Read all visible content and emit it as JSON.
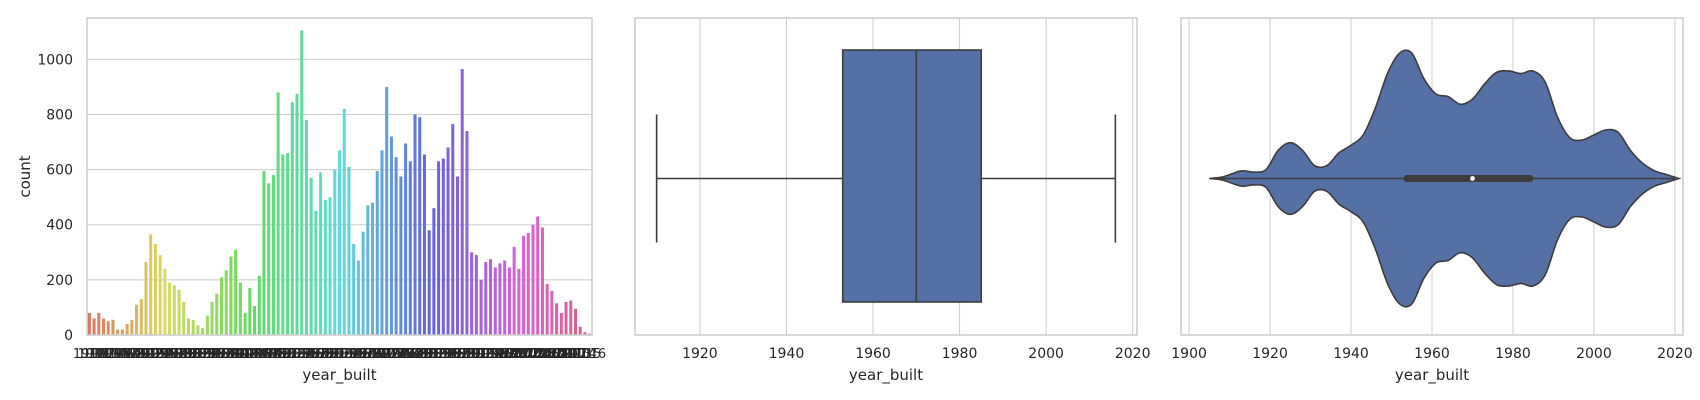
{
  "chart_data": [
    {
      "type": "bar",
      "xlabel": "year_built",
      "ylabel": "count",
      "ylim": [
        0,
        1150
      ],
      "yticks": [
        0,
        200,
        400,
        600,
        800,
        1000
      ],
      "categories": [
        "1910",
        "1911",
        "1912",
        "1913",
        "1914",
        "1915",
        "1916",
        "1917",
        "1918",
        "1919",
        "1920",
        "1921",
        "1922",
        "1923",
        "1924",
        "1925",
        "1926",
        "1927",
        "1928",
        "1929",
        "1930",
        "1931",
        "1932",
        "1933",
        "1934",
        "1935",
        "1936",
        "1937",
        "1938",
        "1939",
        "1940",
        "1941",
        "1942",
        "1943",
        "1944",
        "1945",
        "1946",
        "1947",
        "1948",
        "1949",
        "1950",
        "1951",
        "1952",
        "1953",
        "1954",
        "1955",
        "1956",
        "1957",
        "1958",
        "1959",
        "1960",
        "1961",
        "1962",
        "1963",
        "1964",
        "1965",
        "1966",
        "1967",
        "1968",
        "1969",
        "1970",
        "1971",
        "1972",
        "1973",
        "1974",
        "1975",
        "1976",
        "1977",
        "1978",
        "1979",
        "1980",
        "1981",
        "1982",
        "1983",
        "1984",
        "1985",
        "1986",
        "1987",
        "1988",
        "1989",
        "1990",
        "1991",
        "1992",
        "1993",
        "1994",
        "1995",
        "1996",
        "1997",
        "1998",
        "1999",
        "2000",
        "2001",
        "2002",
        "2003",
        "2004",
        "2005",
        "2006",
        "2007",
        "2008",
        "2009",
        "2010",
        "2011",
        "2012",
        "2013",
        "2014",
        "2015",
        "2016"
      ],
      "values": [
        80,
        60,
        80,
        60,
        50,
        55,
        20,
        20,
        40,
        55,
        110,
        130,
        265,
        365,
        330,
        290,
        240,
        190,
        180,
        165,
        120,
        60,
        55,
        35,
        25,
        70,
        120,
        150,
        210,
        235,
        285,
        310,
        190,
        80,
        170,
        105,
        215,
        595,
        550,
        580,
        880,
        655,
        660,
        845,
        875,
        1105,
        780,
        570,
        450,
        590,
        490,
        500,
        600,
        670,
        820,
        610,
        330,
        270,
        375,
        470,
        480,
        595,
        670,
        900,
        720,
        645,
        575,
        695,
        630,
        800,
        790,
        655,
        380,
        460,
        630,
        640,
        680,
        765,
        575,
        965,
        740,
        300,
        290,
        200,
        265,
        275,
        245,
        260,
        270,
        245,
        320,
        240,
        360,
        370,
        400,
        430,
        390,
        185,
        160,
        115,
        80,
        120,
        125,
        95,
        30,
        10,
        5
      ],
      "xtick_label_example": [
        "19",
        "16"
      ]
    },
    {
      "type": "box",
      "xlabel": "year_built",
      "xlim": [
        1905,
        2021
      ],
      "xticks": [
        1920,
        1940,
        1960,
        1980,
        2000,
        2020
      ],
      "whisker_low": 1910,
      "q1": 1953,
      "median": 1970,
      "q3": 1985,
      "whisker_high": 2016,
      "box_color": "#5470a4"
    },
    {
      "type": "violin",
      "xlabel": "year_built",
      "xlim": [
        1898,
        2022
      ],
      "xticks": [
        1900,
        1920,
        1940,
        1960,
        1980,
        2000,
        2020
      ],
      "median": 1970,
      "q1": 1953,
      "q3": 1985,
      "range": [
        1905,
        2021
      ],
      "density": [
        [
          1905,
          0.0
        ],
        [
          1908,
          0.01
        ],
        [
          1910,
          0.03
        ],
        [
          1913,
          0.06
        ],
        [
          1916,
          0.05
        ],
        [
          1919,
          0.07
        ],
        [
          1922,
          0.22
        ],
        [
          1925,
          0.28
        ],
        [
          1928,
          0.22
        ],
        [
          1931,
          0.1
        ],
        [
          1934,
          0.1
        ],
        [
          1937,
          0.2
        ],
        [
          1940,
          0.26
        ],
        [
          1943,
          0.34
        ],
        [
          1946,
          0.55
        ],
        [
          1949,
          0.82
        ],
        [
          1952,
          0.98
        ],
        [
          1955,
          0.98
        ],
        [
          1958,
          0.78
        ],
        [
          1961,
          0.66
        ],
        [
          1964,
          0.64
        ],
        [
          1967,
          0.58
        ],
        [
          1970,
          0.62
        ],
        [
          1973,
          0.74
        ],
        [
          1976,
          0.83
        ],
        [
          1979,
          0.84
        ],
        [
          1982,
          0.82
        ],
        [
          1985,
          0.84
        ],
        [
          1988,
          0.75
        ],
        [
          1991,
          0.48
        ],
        [
          1994,
          0.32
        ],
        [
          1997,
          0.3
        ],
        [
          2000,
          0.34
        ],
        [
          2003,
          0.38
        ],
        [
          2006,
          0.36
        ],
        [
          2009,
          0.22
        ],
        [
          2012,
          0.12
        ],
        [
          2015,
          0.06
        ],
        [
          2018,
          0.03
        ],
        [
          2021,
          0.0
        ]
      ],
      "fill_color": "#5470a4"
    }
  ]
}
